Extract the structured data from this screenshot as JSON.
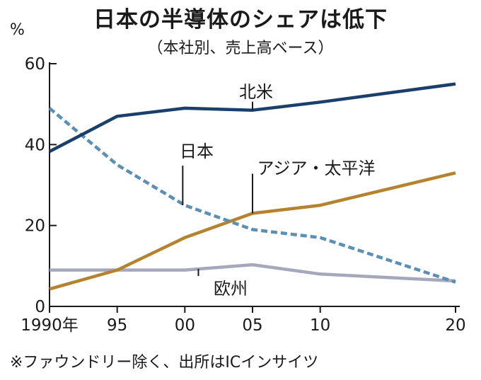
{
  "chart_data": {
    "type": "line",
    "title": "日本の半導体のシェアは低下",
    "subtitle": "（本社別、売上高ベース）",
    "ylabel": "%",
    "note": "※ファウンドリー除く、出所はICインサイツ",
    "x": [
      1990,
      1995,
      2000,
      2005,
      2010,
      2020
    ],
    "xticks": [
      1990,
      1995,
      2000,
      2005,
      2010,
      2020
    ],
    "xtick_labels": [
      "1990年",
      "95",
      "00",
      "05",
      "10",
      "20"
    ],
    "ylim": [
      0,
      60
    ],
    "yticks": [
      0,
      20,
      40,
      60
    ],
    "ytick_labels": [
      "0",
      "20",
      "40",
      "60"
    ],
    "grid": false,
    "series": [
      {
        "name": "北米",
        "values": [
          38.3,
          47.0,
          49.0,
          48.5,
          50.5,
          55.0
        ],
        "color": "#1b3f6b",
        "style": "solid"
      },
      {
        "name": "日本",
        "values": [
          49.0,
          35.0,
          25.0,
          19.0,
          17.0,
          6.0
        ],
        "color": "#5b8fb3",
        "style": "dashed"
      },
      {
        "name": "アジア・太平洋",
        "values": [
          4.3,
          9.0,
          17.0,
          23.0,
          25.0,
          33.0
        ],
        "color": "#b5832f",
        "style": "solid"
      },
      {
        "name": "欧州",
        "values": [
          9.0,
          9.0,
          9.0,
          10.3,
          8.0,
          6.3
        ],
        "color": "#a5a7bd",
        "style": "solid"
      }
    ]
  }
}
